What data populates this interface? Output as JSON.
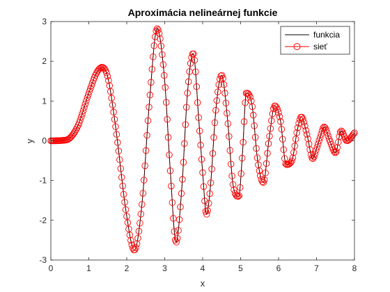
{
  "chart_data": {
    "type": "line",
    "title": "Aproximácia nelineárnej funkcie",
    "xlabel": "x",
    "ylabel": "y",
    "xlim": [
      0,
      8
    ],
    "ylim": [
      -3,
      3
    ],
    "xticks": [
      "0",
      "1",
      "2",
      "3",
      "4",
      "5",
      "6",
      "7",
      "8"
    ],
    "yticks": [
      "3",
      "2",
      "1",
      "0",
      "-1",
      "-2",
      "-3"
    ],
    "grid": false,
    "legend_position": "top-right",
    "series": [
      {
        "name": "funkcia",
        "style": "solid-line",
        "color": "#000000",
        "x": [
          0,
          0.4,
          0.7,
          1.0,
          1.2,
          1.35,
          1.5,
          1.7,
          2.0,
          2.2,
          2.4,
          2.6,
          2.8,
          3.0,
          3.15,
          3.3,
          3.45,
          3.6,
          3.75,
          3.9,
          4.0,
          4.1,
          4.2,
          4.35,
          4.5,
          4.65,
          4.8,
          4.95,
          5.05,
          5.15,
          5.3,
          5.45,
          5.6,
          5.75,
          5.9,
          6.05,
          6.2,
          6.35,
          6.5,
          6.6,
          6.75,
          6.9,
          7.0,
          7.1,
          7.2,
          7.35,
          7.5,
          7.65,
          7.8,
          8.0
        ],
        "y": [
          0,
          0.02,
          0.35,
          1.2,
          1.7,
          1.85,
          1.6,
          0.4,
          -1.9,
          -2.75,
          -1.6,
          1.0,
          2.82,
          1.5,
          -0.8,
          -2.55,
          -1.2,
          1.2,
          2.2,
          0.5,
          -0.8,
          -1.85,
          -1.2,
          0.8,
          1.65,
          0.6,
          -1.1,
          -1.4,
          -0.3,
          1.2,
          0.9,
          -0.5,
          -1.05,
          0.05,
          0.88,
          0.5,
          -0.6,
          -0.5,
          0.3,
          0.6,
          0.15,
          -0.45,
          -0.2,
          0.1,
          0.35,
          0.0,
          -0.3,
          0.25,
          0.0,
          0.2
        ]
      },
      {
        "name": "sieť",
        "style": "circle-markers",
        "color": "#ff0000"
      }
    ]
  }
}
